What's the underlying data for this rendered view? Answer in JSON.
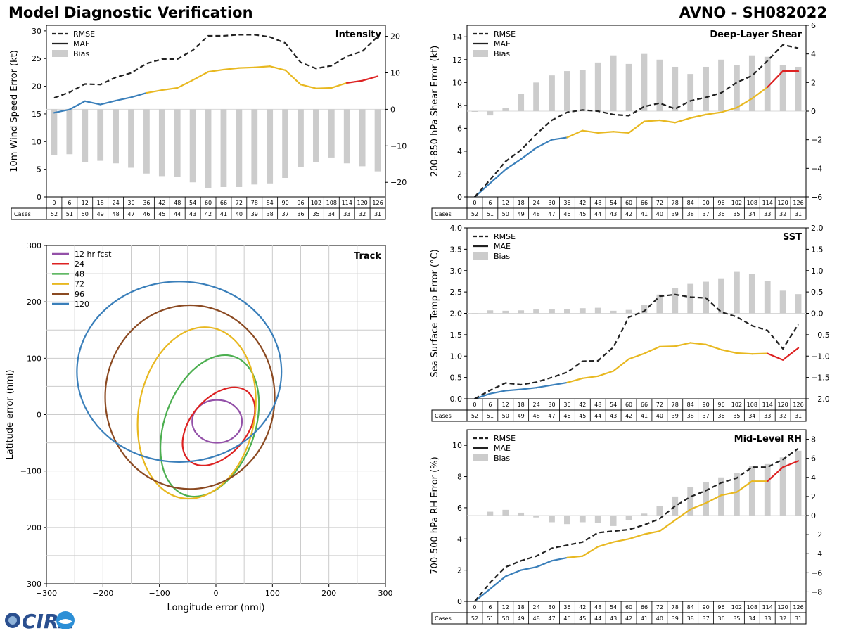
{
  "header": {
    "title": "Model Diagnostic Verification",
    "storm": "AVNO - SH082022"
  },
  "legend": {
    "rmse": "RMSE",
    "mae": "MAE",
    "bias": "Bias",
    "cases": "Cases"
  },
  "hours": [
    "0",
    "6",
    "12",
    "18",
    "24",
    "30",
    "36",
    "42",
    "48",
    "54",
    "60",
    "66",
    "72",
    "78",
    "84",
    "90",
    "96",
    "102",
    "108",
    "114",
    "120",
    "126"
  ],
  "cases": [
    "52",
    "51",
    "50",
    "49",
    "48",
    "47",
    "46",
    "45",
    "44",
    "43",
    "42",
    "41",
    "40",
    "39",
    "38",
    "37",
    "36",
    "35",
    "34",
    "33",
    "32",
    "31"
  ],
  "colors": {
    "early": "#3a7fba",
    "mid": "#e8b820",
    "late": "#dd2222",
    "rmse": "#222222",
    "bias": "#cccccc"
  },
  "logo": {
    "text": "CIRA"
  },
  "chart_data": [
    {
      "id": "intensity",
      "type": "line",
      "title": "Intensity",
      "ylabel": "10m Wind Speed Error (kt)",
      "ylim": [
        0,
        31
      ],
      "y2lim": [
        -24,
        23
      ],
      "yticks": [
        "0",
        "5",
        "10",
        "15",
        "20",
        "25",
        "30"
      ],
      "y2ticks": [
        "−20",
        "−10",
        "0",
        "10",
        "20"
      ],
      "rmse": [
        17.9,
        18.9,
        20.4,
        20.3,
        21.6,
        22.4,
        24.1,
        24.9,
        24.9,
        26.5,
        29.1,
        29.1,
        29.3,
        29.3,
        28.9,
        27.8,
        24.3,
        23.2,
        23.7,
        25.4,
        26.3,
        29.0
      ],
      "mae": [
        15.2,
        15.8,
        17.3,
        16.7,
        17.4,
        18.0,
        18.8,
        19.3,
        19.7,
        21.1,
        22.6,
        23.0,
        23.3,
        23.4,
        23.6,
        22.9,
        20.3,
        19.6,
        19.7,
        20.6,
        21.0,
        21.8
      ],
      "bias": [
        -12.5,
        -12.3,
        -14.4,
        -14.1,
        -14.8,
        -16.0,
        -17.6,
        -18.3,
        -18.5,
        -20.0,
        -21.5,
        -21.3,
        -21.3,
        -20.6,
        -20.3,
        -18.8,
        -15.9,
        -14.5,
        -13.2,
        -14.8,
        -15.6,
        -17.0
      ]
    },
    {
      "id": "shear",
      "type": "line",
      "title": "Deep-Layer Shear",
      "ylabel": "200-850 hPa Shear Error (kt)",
      "ylim": [
        0,
        15
      ],
      "y2lim": [
        -6,
        6
      ],
      "yticks": [
        "0",
        "2",
        "4",
        "6",
        "8",
        "10",
        "12",
        "14"
      ],
      "y2ticks": [
        "−6",
        "−4",
        "−2",
        "0",
        "2",
        "4",
        "6"
      ],
      "rmse": [
        0.0,
        1.5,
        3.1,
        4.1,
        5.5,
        6.7,
        7.4,
        7.6,
        7.5,
        7.2,
        7.1,
        7.9,
        8.2,
        7.7,
        8.4,
        8.7,
        9.1,
        10.0,
        10.6,
        11.9,
        13.3,
        13.0
      ],
      "mae": [
        0.0,
        1.2,
        2.4,
        3.3,
        4.3,
        5.0,
        5.2,
        5.8,
        5.6,
        5.7,
        5.6,
        6.6,
        6.7,
        6.5,
        6.9,
        7.2,
        7.4,
        7.8,
        8.6,
        9.6,
        11.0,
        11.0
      ],
      "bias": [
        0.0,
        -0.3,
        0.2,
        1.2,
        2.0,
        2.5,
        2.8,
        2.9,
        3.4,
        3.9,
        3.3,
        4.0,
        3.6,
        3.1,
        2.6,
        3.1,
        3.6,
        3.2,
        3.9,
        3.8,
        3.2,
        3.1
      ]
    },
    {
      "id": "sst",
      "type": "line",
      "title": "SST",
      "ylabel": "Sea Surface Temp Error (°C)",
      "ylim": [
        0,
        4
      ],
      "y2lim": [
        -2,
        2
      ],
      "yticks": [
        "0.0",
        "0.5",
        "1.0",
        "1.5",
        "2.0",
        "2.5",
        "3.0",
        "3.5",
        "4.0"
      ],
      "y2ticks": [
        "−2.0",
        "−1.5",
        "−1.0",
        "−0.5",
        "0.0",
        "0.5",
        "1.0",
        "1.5",
        "2.0"
      ],
      "rmse": [
        0.0,
        0.2,
        0.37,
        0.33,
        0.39,
        0.5,
        0.62,
        0.88,
        0.89,
        1.21,
        1.91,
        2.05,
        2.4,
        2.44,
        2.38,
        2.36,
        2.03,
        1.92,
        1.71,
        1.6,
        1.17,
        1.74
      ],
      "mae": [
        0.0,
        0.12,
        0.19,
        0.22,
        0.26,
        0.32,
        0.38,
        0.48,
        0.53,
        0.65,
        0.93,
        1.06,
        1.22,
        1.23,
        1.31,
        1.27,
        1.15,
        1.07,
        1.05,
        1.06,
        0.91,
        1.19
      ],
      "bias": [
        0.0,
        0.07,
        0.06,
        0.07,
        0.09,
        0.09,
        0.1,
        0.12,
        0.13,
        0.06,
        0.08,
        0.2,
        0.44,
        0.59,
        0.69,
        0.74,
        0.82,
        0.97,
        0.93,
        0.75,
        0.53,
        0.45
      ]
    },
    {
      "id": "rh",
      "type": "line",
      "title": "Mid-Level RH",
      "ylabel": "700-500 hPa RH Error (%)",
      "ylim": [
        0,
        11
      ],
      "y2lim": [
        -9,
        9
      ],
      "yticks": [
        "0",
        "2",
        "4",
        "6",
        "8",
        "10"
      ],
      "y2ticks": [
        "−8",
        "−6",
        "−4",
        "−2",
        "0",
        "2",
        "4",
        "6",
        "8"
      ],
      "rmse": [
        0.0,
        1.2,
        2.2,
        2.6,
        2.9,
        3.4,
        3.6,
        3.8,
        4.4,
        4.5,
        4.6,
        4.9,
        5.3,
        6.1,
        6.7,
        7.1,
        7.6,
        7.9,
        8.6,
        8.6,
        9.1,
        9.8
      ],
      "mae": [
        0.0,
        0.8,
        1.6,
        2.0,
        2.2,
        2.6,
        2.8,
        2.9,
        3.5,
        3.8,
        4.0,
        4.3,
        4.5,
        5.2,
        5.9,
        6.3,
        6.8,
        7.0,
        7.7,
        7.7,
        8.6,
        9.0
      ],
      "bias": [
        0.0,
        0.4,
        0.6,
        0.3,
        -0.2,
        -0.7,
        -0.9,
        -0.7,
        -0.8,
        -1.1,
        -0.5,
        0.2,
        1.0,
        2.0,
        3.0,
        3.5,
        4.0,
        4.5,
        5.2,
        5.4,
        6.1,
        6.8
      ]
    },
    {
      "id": "track",
      "type": "scatter",
      "title": "Track",
      "xlabel": "Longitude error (nmi)",
      "ylabel": "Latitude error (nmi)",
      "xlim": [
        -300,
        300
      ],
      "ylim": [
        -300,
        300
      ],
      "xticks": [
        "−300",
        "−200",
        "−100",
        "0",
        "100",
        "200",
        "300"
      ],
      "yticks": [
        "−300",
        "−200",
        "−100",
        "0",
        "100",
        "200",
        "300"
      ],
      "ellipses": [
        {
          "label": "12 hr fcst",
          "color": "#9350a8",
          "cx": 2,
          "cy": -12,
          "rx": 44,
          "ry": 38,
          "angle": 0
        },
        {
          "label": "24",
          "color": "#dd2222",
          "cx": 5,
          "cy": -21,
          "rx": 80,
          "ry": 50,
          "angle": -50
        },
        {
          "label": "48",
          "color": "#4caf50",
          "cx": -11,
          "cy": -20,
          "rx": 130,
          "ry": 80,
          "angle": -70
        },
        {
          "label": "72",
          "color": "#e8b820",
          "cx": -34,
          "cy": 3,
          "rx": 153,
          "ry": 103,
          "angle": -80
        },
        {
          "label": "96",
          "color": "#8b4a22",
          "cx": -46,
          "cy": 31,
          "rx": 150,
          "ry": 163,
          "angle": 0
        },
        {
          "label": "120",
          "color": "#3a7fba",
          "cx": -65,
          "cy": 76,
          "rx": 181,
          "ry": 160,
          "angle": 0
        }
      ]
    }
  ]
}
